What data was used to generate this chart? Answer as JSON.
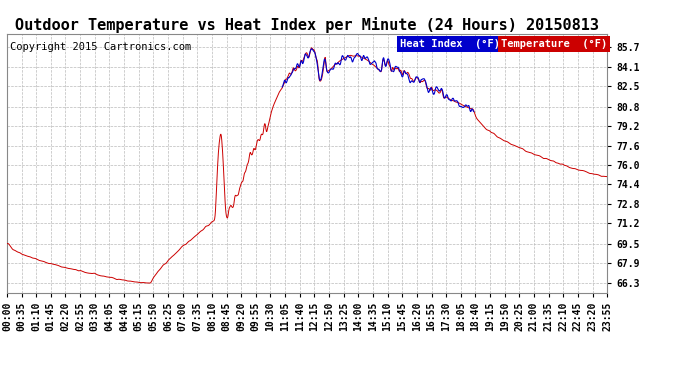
{
  "title": "Outdoor Temperature vs Heat Index per Minute (24 Hours) 20150813",
  "copyright": "Copyright 2015 Cartronics.com",
  "legend_heat_index": "Heat Index  (°F)",
  "legend_temperature": "Temperature  (°F)",
  "yticks": [
    66.3,
    67.9,
    69.5,
    71.2,
    72.8,
    74.4,
    76.0,
    77.6,
    79.2,
    80.8,
    82.5,
    84.1,
    85.7
  ],
  "ylim": [
    65.5,
    86.8
  ],
  "xtick_labels": [
    "00:00",
    "00:35",
    "01:10",
    "01:45",
    "02:20",
    "02:55",
    "03:30",
    "04:05",
    "04:40",
    "05:15",
    "05:50",
    "06:25",
    "07:00",
    "07:35",
    "08:10",
    "08:45",
    "09:20",
    "09:55",
    "10:30",
    "11:05",
    "11:40",
    "12:15",
    "12:50",
    "13:25",
    "14:00",
    "14:35",
    "15:10",
    "15:45",
    "16:20",
    "16:55",
    "17:30",
    "18:05",
    "18:40",
    "19:15",
    "19:50",
    "20:25",
    "21:00",
    "21:35",
    "22:10",
    "22:45",
    "23:20",
    "23:55"
  ],
  "background_color": "#ffffff",
  "plot_bg_color": "#ffffff",
  "grid_color": "#bbbbbb",
  "temp_color": "#cc0000",
  "heat_color": "#0000cc",
  "legend_bg_heat": "#0000cc",
  "legend_bg_temp": "#cc0000",
  "title_fontsize": 11,
  "tick_fontsize": 7,
  "copyright_fontsize": 7.5,
  "legend_fontsize": 7.5
}
